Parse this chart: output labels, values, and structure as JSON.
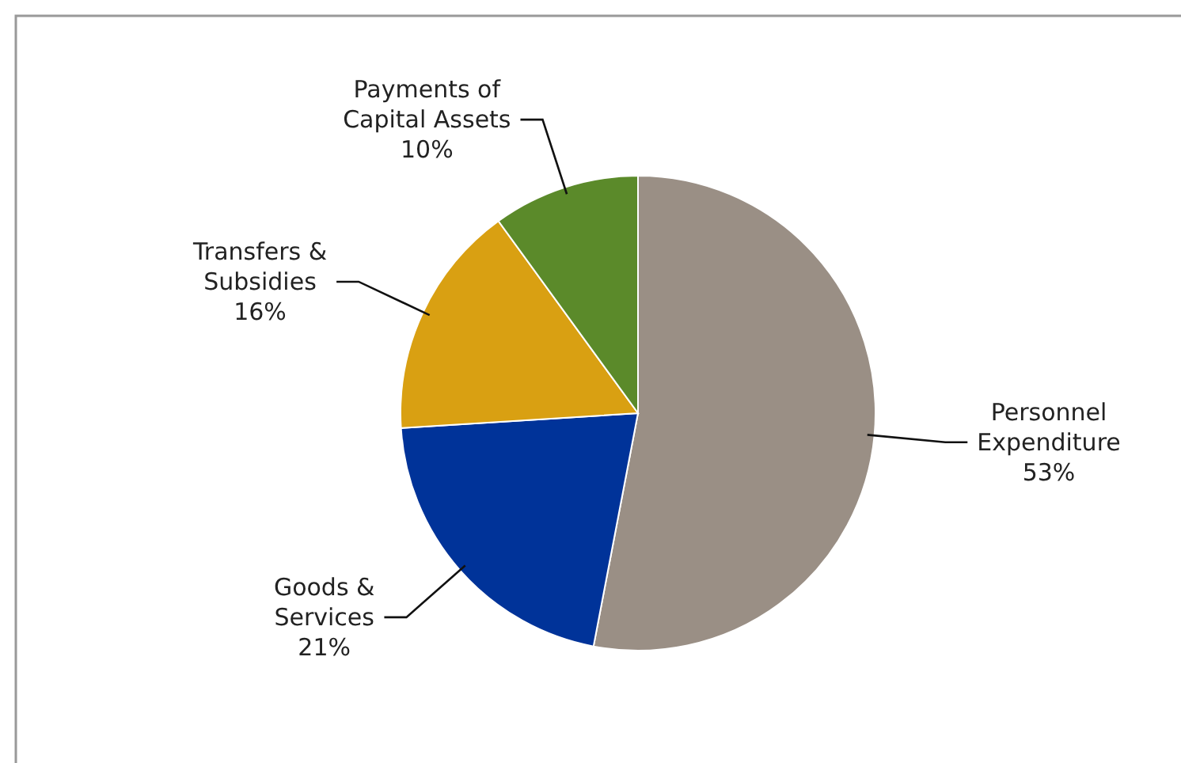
{
  "chart_data": {
    "type": "pie",
    "categories": [
      "Personnel Expenditure",
      "Goods & Services",
      "Transfers & Subsidies",
      "Payments of Capital Assets"
    ],
    "values": [
      53,
      21,
      16,
      10
    ],
    "colors": [
      "#9a8f85",
      "#003399",
      "#d9a012",
      "#5b8a2a"
    ],
    "value_labels": [
      "53%",
      "21%",
      "16%",
      "10%"
    ]
  }
}
